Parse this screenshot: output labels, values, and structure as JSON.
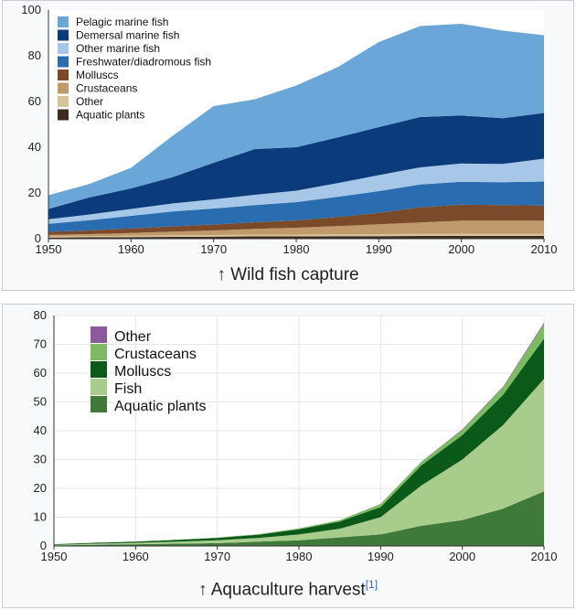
{
  "figures": [
    {
      "caption_arrow": "↑",
      "caption": "Wild fish capture",
      "caption_ref": ""
    },
    {
      "caption_arrow": "↑",
      "caption": "Aquaculture harvest",
      "caption_ref": "[1]"
    }
  ],
  "chart_data": [
    {
      "type": "area",
      "stacked": true,
      "title": "",
      "xlabel": "",
      "ylabel": "",
      "xlim": [
        1950,
        2010
      ],
      "ylim": [
        0,
        100
      ],
      "xticks": [
        1950,
        1960,
        1970,
        1980,
        1990,
        2000,
        2010
      ],
      "yticks": [
        0,
        20,
        40,
        60,
        80,
        100
      ],
      "grid": false,
      "legend_position": "top-left",
      "x": [
        1950,
        1955,
        1960,
        1965,
        1970,
        1975,
        1980,
        1985,
        1990,
        1995,
        2000,
        2005,
        2010
      ],
      "series": [
        {
          "name": "Aquatic plants",
          "color": "#3d2b1f",
          "values": [
            0.5,
            0.6,
            0.7,
            0.8,
            0.9,
            1,
            1,
            1.1,
            1.1,
            1.2,
            1.2,
            1.2,
            1.2
          ]
        },
        {
          "name": "Other",
          "color": "#d8c49a",
          "values": [
            0.5,
            0.5,
            0.6,
            0.7,
            0.7,
            0.8,
            0.8,
            0.8,
            0.9,
            0.9,
            0.9,
            0.9,
            0.9
          ]
        },
        {
          "name": "Crustaceans",
          "color": "#c09a6b",
          "values": [
            0.7,
            0.9,
            1.2,
            1.6,
            2,
            2.5,
            3,
            3.6,
            4.3,
            5,
            5.8,
            5.8,
            5.8
          ]
        },
        {
          "name": "Molluscs",
          "color": "#7a4a2a",
          "values": [
            1.3,
            1.6,
            2,
            2.3,
            2.6,
            2.9,
            3.2,
            4,
            5,
            6.6,
            7,
            6.8,
            6.6
          ]
        },
        {
          "name": "Freshwater/diadromous fish",
          "color": "#2a6cb0",
          "values": [
            3.5,
            4.5,
            5.5,
            6.5,
            7,
            7.5,
            8,
            8.8,
            9.5,
            10,
            10,
            10,
            10.5
          ]
        },
        {
          "name": "Other marine fish",
          "color": "#a6c7e8",
          "values": [
            2,
            2.5,
            3,
            3.5,
            4,
            4.5,
            5,
            6,
            7,
            7.5,
            8,
            8,
            10
          ]
        },
        {
          "name": "Demersal marine fish",
          "color": "#0c3b7c",
          "values": [
            4.5,
            7.5,
            9,
            11.5,
            16,
            20,
            19,
            20,
            21,
            22,
            21,
            20,
            20
          ]
        },
        {
          "name": "Pelagic marine fish",
          "color": "#6ba6d8",
          "values": [
            6,
            5.9,
            9,
            18,
            24.8,
            21.8,
            27,
            30.7,
            37.2,
            39.8,
            40.1,
            38.3,
            34
          ]
        }
      ]
    },
    {
      "type": "area",
      "stacked": true,
      "title": "",
      "xlabel": "",
      "ylabel": "",
      "xlim": [
        1950,
        2010
      ],
      "ylim": [
        0,
        80
      ],
      "xticks": [
        1950,
        1960,
        1970,
        1980,
        1990,
        2000,
        2010
      ],
      "yticks": [
        0,
        10,
        20,
        30,
        40,
        50,
        60,
        70,
        80
      ],
      "grid": true,
      "legend_position": "top-left",
      "x": [
        1950,
        1955,
        1960,
        1965,
        1970,
        1975,
        1980,
        1985,
        1990,
        1995,
        2000,
        2005,
        2010
      ],
      "series": [
        {
          "name": "Aquatic plants",
          "color": "#3f7a3a",
          "values": [
            0.2,
            0.4,
            0.6,
            0.8,
            1,
            1.5,
            2,
            3,
            4,
            7,
            9,
            13,
            19
          ]
        },
        {
          "name": "Fish",
          "color": "#a8cc8c",
          "values": [
            0.2,
            0.4,
            0.5,
            0.7,
            1,
            1.3,
            2,
            3,
            6,
            14,
            21,
            29,
            39
          ]
        },
        {
          "name": "Molluscs",
          "color": "#0b5a1a",
          "values": [
            0.2,
            0.3,
            0.4,
            0.6,
            0.8,
            1.1,
            1.8,
            2.5,
            3.5,
            7,
            8.5,
            10.5,
            14
          ]
        },
        {
          "name": "Crustaceans",
          "color": "#7dba64",
          "values": [
            0.05,
            0.05,
            0.1,
            0.1,
            0.15,
            0.2,
            0.3,
            0.5,
            1,
            1.2,
            1.8,
            2.5,
            5
          ]
        },
        {
          "name": "Other",
          "color": "#8c5a9c",
          "values": [
            0,
            0,
            0,
            0,
            0,
            0,
            0,
            0,
            0.1,
            0.1,
            0.2,
            0.3,
            0.5
          ]
        }
      ],
      "legend_order": [
        "Other",
        "Crustaceans",
        "Molluscs",
        "Fish",
        "Aquatic plants"
      ]
    }
  ]
}
